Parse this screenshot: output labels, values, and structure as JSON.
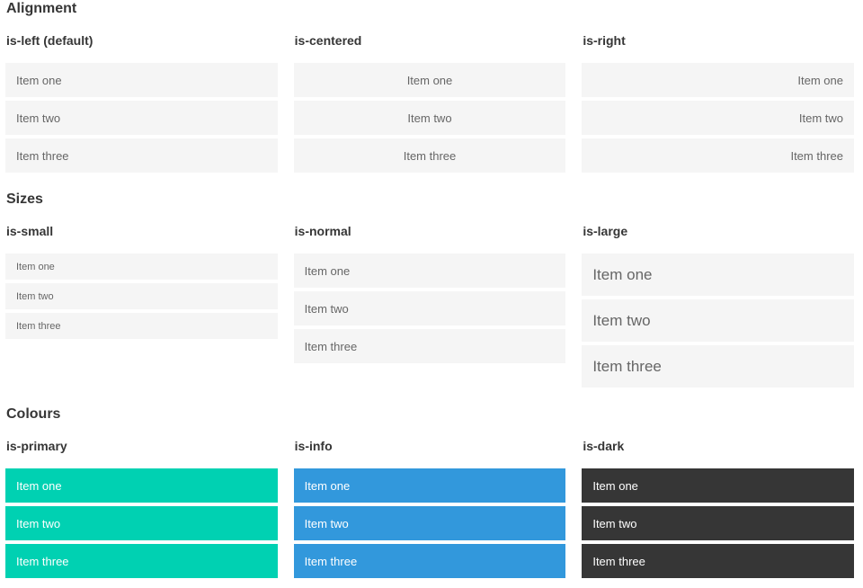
{
  "colors": {
    "item_bg": "#f5f5f5",
    "item_text": "#666666",
    "heading_text": "#363636",
    "primary": "#00d1b2",
    "info": "#3298dc",
    "dark": "#363636",
    "on_color_text": "#ffffff"
  },
  "sections": [
    {
      "title": "Alignment",
      "groups": [
        {
          "heading": "is-left (default)",
          "modifier": "is-left",
          "items": [
            "Item one",
            "Item two",
            "Item three"
          ]
        },
        {
          "heading": "is-centered",
          "modifier": "is-centered",
          "items": [
            "Item one",
            "Item two",
            "Item three"
          ]
        },
        {
          "heading": "is-right",
          "modifier": "is-right",
          "items": [
            "Item one",
            "Item two",
            "Item three"
          ]
        }
      ]
    },
    {
      "title": "Sizes",
      "groups": [
        {
          "heading": "is-small",
          "modifier": "is-small",
          "items": [
            "Item one",
            "Item two",
            "Item three"
          ]
        },
        {
          "heading": "is-normal",
          "modifier": "is-normal",
          "items": [
            "Item one",
            "Item two",
            "Item three"
          ]
        },
        {
          "heading": "is-large",
          "modifier": "is-large",
          "items": [
            "Item one",
            "Item two",
            "Item three"
          ]
        }
      ]
    },
    {
      "title": "Colours",
      "groups": [
        {
          "heading": "is-primary",
          "modifier": "is-primary",
          "color": "#00d1b2",
          "items": [
            "Item one",
            "Item two",
            "Item three"
          ]
        },
        {
          "heading": "is-info",
          "modifier": "is-info",
          "color": "#3298dc",
          "items": [
            "Item one",
            "Item two",
            "Item three"
          ]
        },
        {
          "heading": "is-dark",
          "modifier": "is-dark",
          "color": "#363636",
          "items": [
            "Item one",
            "Item two",
            "Item three"
          ]
        }
      ]
    }
  ]
}
